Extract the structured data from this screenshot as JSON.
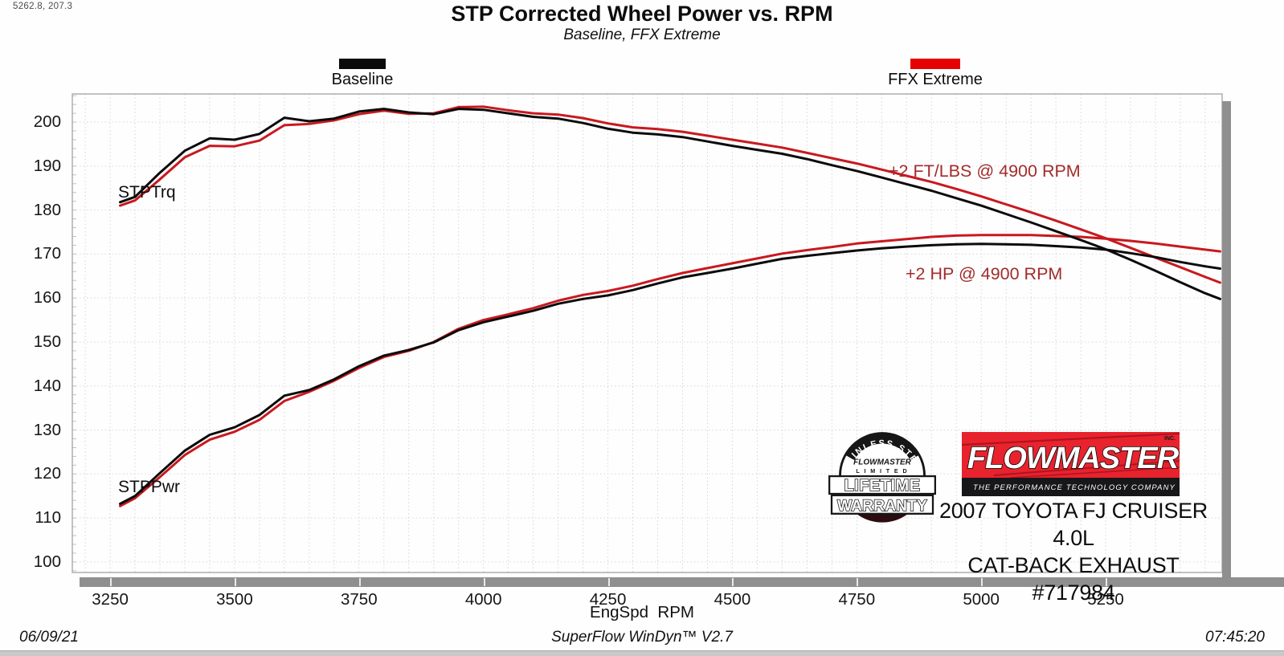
{
  "cursor_readout": "5262.8, 207.3",
  "header": {
    "title": "STP Corrected Wheel Power vs. RPM",
    "subtitle": "Baseline, FFX Extreme"
  },
  "legend": [
    {
      "label": "Baseline",
      "color": "#0b0b0b"
    },
    {
      "label": "FFX Extreme",
      "color": "#e60202"
    }
  ],
  "plot_labels": {
    "torque_series": "STPTrq",
    "power_series": "STPPwr",
    "torque_gain": "+2 FT/LBS @ 4900 RPM",
    "power_gain": "+2 HP @ 4900 RPM"
  },
  "branding": {
    "badge": {
      "arc_text": "STAINLESS STEEL",
      "brand": "FLOWMASTER",
      "limited": "L I M I T E D",
      "line1": "LIFETIME",
      "line2": "WARRANTY"
    },
    "logo": {
      "brand": "FLOWMASTER",
      "inc": "INC.",
      "tagline": "THE PERFORMANCE TECHNOLOGY COMPANY",
      "red": "#e8232d",
      "black": "#17171a"
    },
    "vehicle_line1": "2007 TOYOTA FJ CRUISER 4.0L",
    "vehicle_line2": "CAT-BACK EXHAUST #717984"
  },
  "footer": {
    "date": "06/09/21",
    "software": "SuperFlow WinDyn™ V2.7",
    "time": "07:45:20"
  },
  "chart_data": {
    "type": "line",
    "title": "STP Corrected Wheel Power vs. RPM",
    "subtitle": "Baseline, FFX Extreme",
    "xlabel": "EngSpd  RPM",
    "ylabel": "",
    "xlim": [
      3174,
      5484
    ],
    "ylim": [
      97.6,
      206.4
    ],
    "x_ticks": [
      3250,
      3500,
      3750,
      4000,
      4250,
      4500,
      4750,
      5000,
      5250
    ],
    "y_ticks": [
      100,
      110,
      120,
      130,
      140,
      150,
      160,
      170,
      180,
      190,
      200
    ],
    "grid": {
      "x_step": 50,
      "y_step": 10,
      "style": "dotted"
    },
    "legend_position": "top",
    "x": [
      3270,
      3300,
      3350,
      3400,
      3450,
      3500,
      3550,
      3600,
      3650,
      3700,
      3750,
      3800,
      3850,
      3900,
      3950,
      4000,
      4050,
      4100,
      4150,
      4200,
      4250,
      4300,
      4350,
      4400,
      4450,
      4500,
      4550,
      4600,
      4650,
      4700,
      4750,
      4800,
      4850,
      4900,
      4950,
      5000,
      5050,
      5100,
      5150,
      5200,
      5250,
      5300,
      5350,
      5400,
      5450,
      5480
    ],
    "series": [
      {
        "name": "Baseline STPTrq (ft-lbs)",
        "color": "#0b0b0b",
        "values": [
          181.8,
          183.0,
          188.5,
          193.5,
          196.3,
          196.0,
          197.3,
          201.0,
          200.2,
          200.8,
          202.4,
          203.0,
          202.2,
          201.8,
          203.0,
          202.8,
          202.0,
          201.2,
          200.8,
          199.8,
          198.5,
          197.6,
          197.2,
          196.6,
          195.6,
          194.6,
          193.7,
          192.8,
          191.6,
          190.2,
          188.9,
          187.4,
          185.9,
          184.4,
          182.7,
          181.0,
          179.1,
          177.2,
          175.2,
          173.2,
          171.1,
          168.7,
          166.2,
          163.6,
          161.1,
          159.8
        ]
      },
      {
        "name": "FFX Extreme STPTrq (ft-lbs)",
        "color": "#c8191f",
        "values": [
          181.0,
          182.2,
          187.0,
          192.0,
          194.6,
          194.5,
          195.8,
          199.3,
          199.6,
          200.4,
          201.8,
          202.6,
          201.9,
          202.0,
          203.4,
          203.5,
          202.7,
          202.0,
          201.7,
          200.9,
          199.7,
          198.8,
          198.4,
          197.8,
          196.9,
          196.0,
          195.1,
          194.2,
          193.0,
          191.8,
          190.6,
          189.2,
          187.8,
          186.4,
          184.8,
          183.1,
          181.3,
          179.5,
          177.6,
          175.6,
          173.6,
          171.4,
          169.2,
          167.0,
          164.8,
          163.5
        ]
      },
      {
        "name": "Baseline STPPwr (hp)",
        "color": "#0b0b0b",
        "values": [
          113.2,
          115.0,
          120.2,
          125.3,
          128.9,
          130.6,
          133.4,
          137.8,
          139.1,
          141.5,
          144.5,
          146.9,
          148.2,
          149.9,
          152.7,
          154.5,
          155.8,
          157.1,
          158.7,
          159.8,
          160.6,
          161.8,
          163.3,
          164.7,
          165.7,
          166.7,
          167.8,
          168.9,
          169.6,
          170.2,
          170.8,
          171.3,
          171.7,
          172.0,
          172.2,
          172.3,
          172.2,
          172.1,
          171.8,
          171.5,
          171.0,
          170.2,
          169.3,
          168.2,
          167.2,
          166.7
        ]
      },
      {
        "name": "FFX Extreme STPPwr (hp)",
        "color": "#c8191f",
        "values": [
          112.7,
          114.5,
          119.3,
          124.3,
          127.8,
          129.6,
          132.3,
          136.6,
          138.7,
          141.2,
          144.1,
          146.6,
          148.0,
          150.0,
          153.0,
          155.0,
          156.3,
          157.7,
          159.4,
          160.7,
          161.6,
          162.8,
          164.3,
          165.7,
          166.8,
          167.9,
          169.0,
          170.1,
          170.9,
          171.6,
          172.4,
          172.9,
          173.4,
          173.9,
          174.2,
          174.3,
          174.3,
          174.3,
          174.1,
          173.9,
          173.5,
          173.0,
          172.4,
          171.7,
          171.0,
          170.6
        ]
      }
    ]
  }
}
